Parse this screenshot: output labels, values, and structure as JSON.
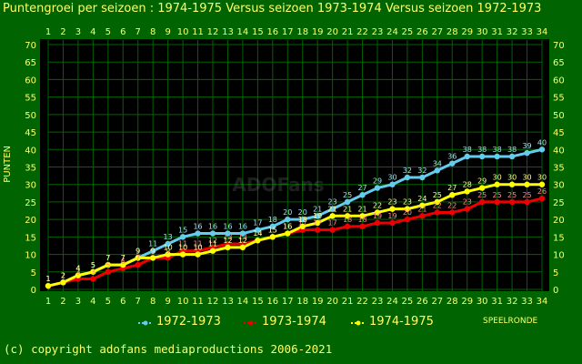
{
  "title": "Puntengroei per seizoen : 1974-1975 Versus seizoen 1973-1974 Versus seizoen 1972-1973",
  "copyright": "(c) copyright adofans mediaproductions 2006-2021",
  "watermark": "ADOFans",
  "chart_data": {
    "type": "line",
    "xlabel": "SPEELRONDE",
    "ylabel": "PUNTEN",
    "x": [
      1,
      2,
      3,
      4,
      5,
      6,
      7,
      8,
      9,
      10,
      11,
      12,
      13,
      14,
      15,
      16,
      17,
      18,
      19,
      20,
      21,
      22,
      23,
      24,
      25,
      26,
      27,
      28,
      29,
      30,
      31,
      32,
      33,
      34
    ],
    "xlim": [
      1,
      34
    ],
    "ylim": [
      0,
      70
    ],
    "yticks": [
      0,
      5,
      10,
      15,
      20,
      25,
      30,
      35,
      40,
      45,
      50,
      55,
      60,
      65,
      70
    ],
    "grid": true,
    "legend_position": "bottom",
    "background": "#000000",
    "plot_bg": "#003300",
    "series": [
      {
        "name": "1972-1973",
        "color": "#66ccee",
        "values": [
          1,
          2,
          4,
          5,
          7,
          7,
          9,
          11,
          13,
          15,
          16,
          16,
          16,
          16,
          17,
          18,
          20,
          20,
          21,
          23,
          25,
          27,
          29,
          30,
          32,
          32,
          34,
          36,
          38,
          38,
          38,
          38,
          39,
          40
        ]
      },
      {
        "name": "1973-1974",
        "color": "#ee0000",
        "values": [
          1,
          2,
          3,
          3,
          5,
          6,
          7,
          9,
          9,
          11,
          11,
          12,
          13,
          13,
          14,
          15,
          16,
          17,
          17,
          17,
          18,
          18,
          19,
          19,
          20,
          21,
          22,
          22,
          23,
          25,
          25,
          25,
          25,
          26
        ]
      },
      {
        "name": "1974-1975",
        "color": "#ffff00",
        "values": [
          1,
          2,
          4,
          5,
          7,
          7,
          9,
          9,
          10,
          10,
          10,
          11,
          12,
          12,
          14,
          15,
          16,
          18,
          19,
          21,
          21,
          21,
          22,
          23,
          23,
          24,
          25,
          27,
          28,
          29,
          30,
          30,
          30,
          30
        ]
      }
    ]
  }
}
